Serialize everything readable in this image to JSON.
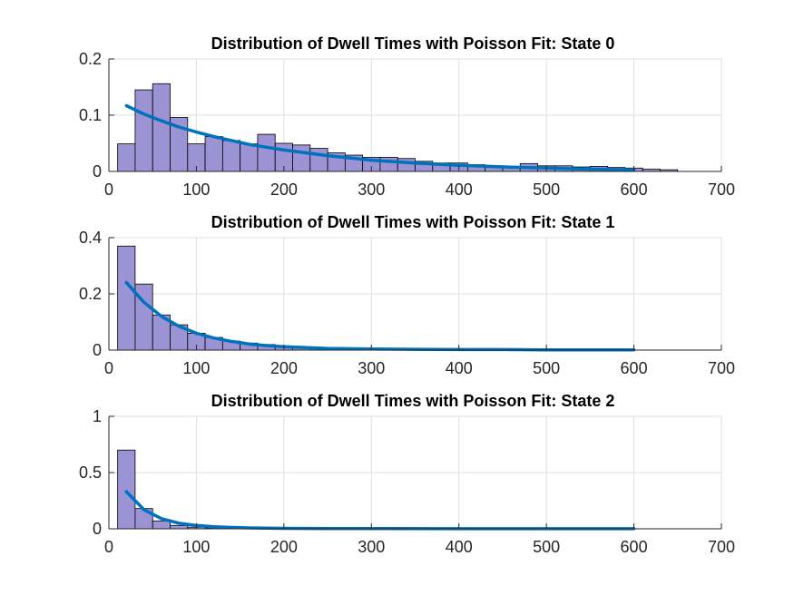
{
  "chart_data": [
    {
      "type": "bar",
      "title": "Distribution of Dwell Times with Poisson Fit: State 0",
      "xlabel": "",
      "ylabel": "",
      "xlim": [
        0,
        700
      ],
      "ylim": [
        0,
        0.2
      ],
      "xticks": [
        "0",
        "100",
        "200",
        "300",
        "400",
        "500",
        "600",
        "700"
      ],
      "yticks": [
        "0",
        "0.1",
        "0.2"
      ],
      "grid": true,
      "bin_width": 20,
      "bin_start": 10,
      "values": [
        0.049,
        0.145,
        0.156,
        0.096,
        0.049,
        0.062,
        0.055,
        0.049,
        0.066,
        0.05,
        0.047,
        0.041,
        0.033,
        0.029,
        0.025,
        0.025,
        0.023,
        0.018,
        0.015,
        0.015,
        0.012,
        0.01,
        0.008,
        0.014,
        0.01,
        0.01,
        0.008,
        0.009,
        0.007,
        0.006,
        0.004,
        0.003
      ],
      "fit": {
        "x": [
          20,
          40,
          60,
          80,
          100,
          120,
          140,
          160,
          180,
          200,
          250,
          300,
          350,
          400,
          450,
          500,
          550,
          600
        ],
        "y": [
          0.117,
          0.102,
          0.09,
          0.079,
          0.07,
          0.062,
          0.055,
          0.048,
          0.043,
          0.038,
          0.028,
          0.02,
          0.015,
          0.011,
          0.008,
          0.006,
          0.004,
          0.003
        ]
      }
    },
    {
      "type": "bar",
      "title": "Distribution of Dwell Times with Poisson Fit: State 1",
      "xlabel": "",
      "ylabel": "",
      "xlim": [
        0,
        700
      ],
      "ylim": [
        0,
        0.4
      ],
      "xticks": [
        "0",
        "100",
        "200",
        "300",
        "400",
        "500",
        "600",
        "700"
      ],
      "yticks": [
        "0",
        "0.2",
        "0.4"
      ],
      "grid": true,
      "bin_width": 20,
      "bin_start": 10,
      "values": [
        0.37,
        0.235,
        0.125,
        0.09,
        0.06,
        0.045,
        0.032,
        0.025,
        0.02,
        0.015,
        0.012,
        0.01,
        0.008,
        0.006,
        0.005,
        0.004,
        0.003,
        0.003,
        0.002,
        0.002
      ],
      "fit": {
        "x": [
          20,
          40,
          60,
          80,
          100,
          120,
          140,
          160,
          180,
          200,
          250,
          300,
          350,
          400,
          450,
          500,
          550,
          600
        ],
        "y": [
          0.24,
          0.17,
          0.12,
          0.085,
          0.06,
          0.043,
          0.031,
          0.022,
          0.016,
          0.012,
          0.006,
          0.004,
          0.003,
          0.002,
          0.002,
          0.001,
          0.001,
          0.001
        ]
      }
    },
    {
      "type": "bar",
      "title": "Distribution of Dwell Times with Poisson Fit: State 2",
      "xlabel": "",
      "ylabel": "",
      "xlim": [
        0,
        700
      ],
      "ylim": [
        0,
        1
      ],
      "xticks": [
        "0",
        "100",
        "200",
        "300",
        "400",
        "500",
        "600",
        "700"
      ],
      "yticks": [
        "0",
        "0.5",
        "1"
      ],
      "grid": true,
      "bin_width": 20,
      "bin_start": 10,
      "values": [
        0.7,
        0.18,
        0.07,
        0.03,
        0.015,
        0.008,
        0.005,
        0.003
      ],
      "fit": {
        "x": [
          20,
          40,
          60,
          80,
          100,
          120,
          140,
          160,
          200,
          250,
          300,
          400,
          500,
          600
        ],
        "y": [
          0.33,
          0.17,
          0.09,
          0.05,
          0.03,
          0.018,
          0.012,
          0.008,
          0.004,
          0.002,
          0.002,
          0.001,
          0.001,
          0.001
        ]
      }
    }
  ],
  "colors": {
    "bar_fill": "#9b93d3",
    "bar_edge": "#000000",
    "fit_line": "#0072bd",
    "grid": "#dfdfdf",
    "axis": "#262626"
  }
}
